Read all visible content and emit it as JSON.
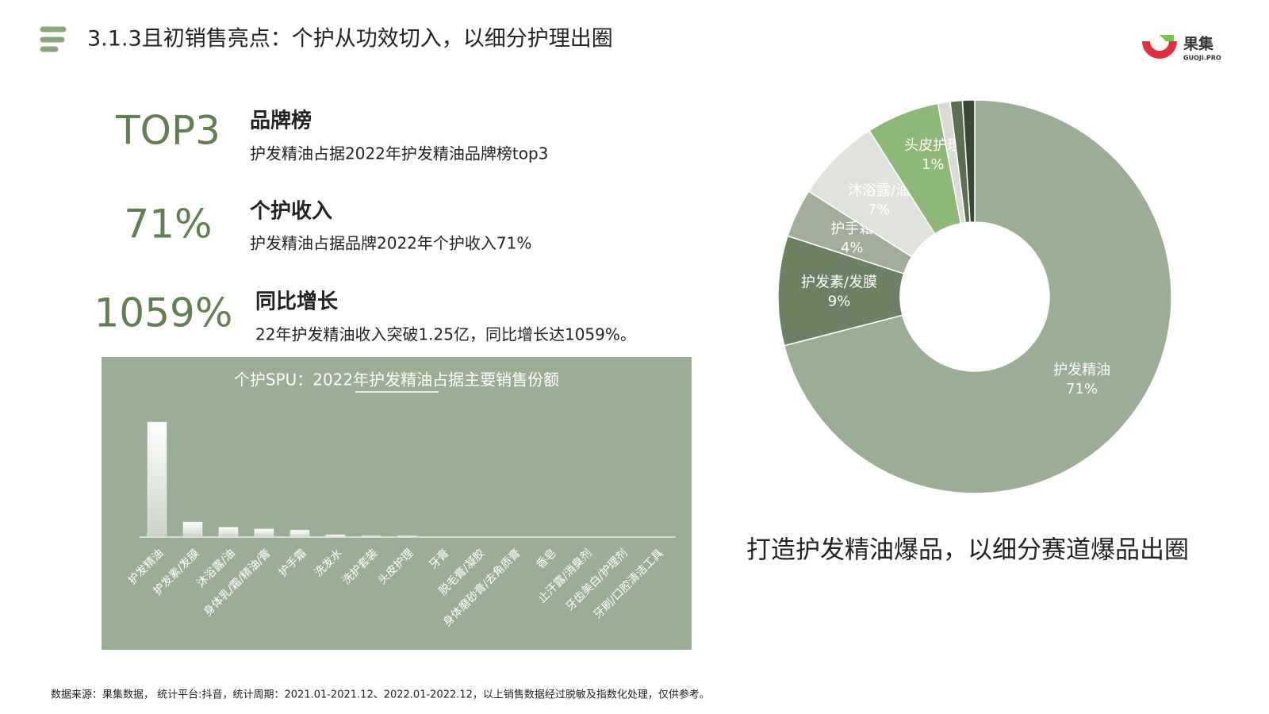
{
  "header": {
    "title": "3.1.3且初销售亮点：个护从功效切入，以细分护理出圈",
    "logo": "果集",
    "logo_sub": "GUOJI.PRO"
  },
  "highlights": [
    {
      "figure": "TOP3",
      "heading": "品牌榜",
      "text": "护发精油占据2022年护发精油品牌榜top3"
    },
    {
      "figure": "71%",
      "heading": "个护收入",
      "text": "护发精油占据品牌2022年个护收入71%"
    },
    {
      "figure": "1059%",
      "heading": "同比增长",
      "text": "22年护发精油收入突破1.25亿，同比增长达1059%。"
    }
  ],
  "caption": "打造护发精油爆品，以细分赛道爆品出圈",
  "source": "数据来源：果集数据， 统计平台:抖音，统计周期：2021.01-2021.12、2022.01-2022.12，以上销售数据经过脱敏及指数化处理，仅供参考。",
  "chart_data": [
    {
      "type": "bar",
      "title": "个护SPU：2022年护发精油占据主要销售份额",
      "color": "#ffffff",
      "categories": [
        "护发精油",
        "护发素/发膜",
        "沐浴露/油",
        "身体乳/霜/精油/膏",
        "护手霜",
        "洗发水",
        "洗护套装",
        "头皮护理",
        "牙膏",
        "脱毛膏/凝胶",
        "身体磨砂膏/去角质膏",
        "香皂",
        "止汗露/消臭剂",
        "牙齿美白/护理剂",
        "牙刷/口腔清洁工具"
      ],
      "values": [
        100,
        13,
        8.5,
        7,
        6,
        2,
        1,
        1,
        0,
        0,
        0,
        0,
        0,
        0,
        0
      ]
    },
    {
      "type": "donut",
      "categories": [
        "护发精油",
        "护发素/发膜",
        "护手霜",
        "沐浴露/油",
        null,
        "头皮护理",
        null,
        null
      ],
      "values": [
        71,
        9,
        4,
        7,
        6,
        1,
        1,
        1
      ],
      "value_labels": [
        "71%",
        "9%",
        "4%",
        "7%",
        null,
        "1%",
        null,
        null
      ],
      "colors": [
        "#9aae93",
        "#6b8262",
        "#a2ae98",
        "#dfe3dc",
        "#8db878",
        "#d8dcd4",
        "#5b704f",
        "#3b4934"
      ]
    }
  ]
}
